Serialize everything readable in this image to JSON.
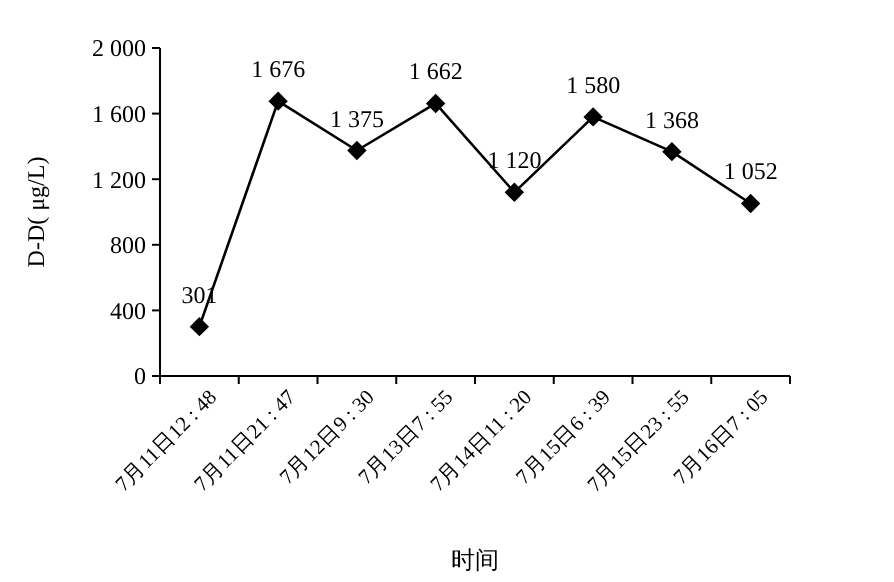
{
  "chart_data": {
    "type": "line",
    "xlabel": "时间",
    "ylabel": "D-D( μg/L)",
    "categories": [
      "7月11日12 : 48",
      "7月11日21 : 47",
      "7月12日9 : 30",
      "7月13日7 : 55",
      "7月14日11 : 20",
      "7月15日6 : 39",
      "7月15日23 : 55",
      "7月16日7 : 05"
    ],
    "series": [
      {
        "color": "#000000",
        "values": [
          301,
          1676,
          1375,
          1662,
          1120,
          1580,
          1368,
          1052
        ],
        "value_labels": [
          "301",
          "1 676",
          "1 375",
          "1 662",
          "1 120",
          "1 580",
          "1 368",
          "1 052"
        ]
      }
    ],
    "ylim": [
      0,
      2000
    ],
    "yticks": [
      0,
      {
        "value": 400,
        "label": "400"
      },
      {
        "value": 800,
        "label": "800"
      },
      {
        "value": 1200,
        "label": "1 200"
      },
      {
        "value": 1600,
        "label": "1 600"
      },
      {
        "value": 2000,
        "label": "2 000"
      }
    ],
    "grid": false,
    "marker": "diamond",
    "line_style": "solid"
  }
}
